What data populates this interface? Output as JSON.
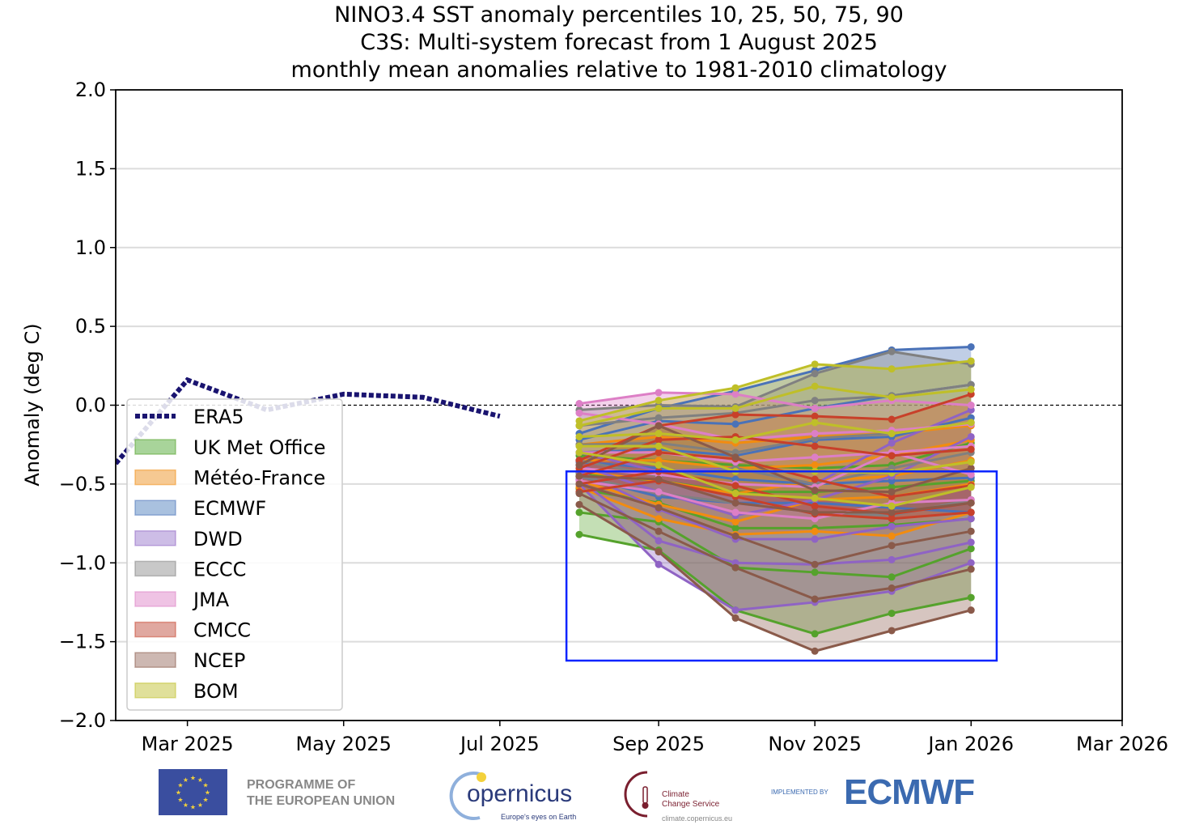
{
  "chart_data": {
    "type": "line",
    "title_lines": [
      "NINO3.4 SST anomaly percentiles 10, 25, 50, 75, 90",
      "C3S: Multi-system forecast from 1 August 2025",
      "monthly mean anomalies relative to 1981-2010 climatology"
    ],
    "ylabel": "Anomaly (deg C)",
    "xlabel": "",
    "ylim": [
      -2.0,
      2.0
    ],
    "xlim": [
      "2025-02-01",
      "2026-03-01"
    ],
    "yticks": [
      "2.0",
      "1.5",
      "1.0",
      "0.5",
      "0.0",
      "−0.5",
      "−1.0",
      "−1.5",
      "−2.0"
    ],
    "ytick_values": [
      2.0,
      1.5,
      1.0,
      0.5,
      0.0,
      -0.5,
      -1.0,
      -1.5,
      -2.0
    ],
    "xticks": [
      "Mar 2025",
      "May 2025",
      "Jul 2025",
      "Sep 2025",
      "Nov 2025",
      "Jan 2026",
      "Mar 2026"
    ],
    "xtick_dates": [
      "2025-03-01",
      "2025-05-01",
      "2025-07-01",
      "2025-09-01",
      "2025-11-01",
      "2026-01-01",
      "2026-03-01"
    ],
    "grid": "horizontal",
    "zero_line": "dashed",
    "legend_position": "center-left",
    "observed": {
      "name": "ERA5",
      "color": "#1a1470",
      "style": "dotted",
      "x": [
        "2025-02-01",
        "2025-03-01",
        "2025-04-01",
        "2025-05-01",
        "2025-06-01",
        "2025-07-01"
      ],
      "y": [
        -0.37,
        0.16,
        -0.03,
        0.07,
        0.05,
        -0.07
      ]
    },
    "forecast_x": [
      "2025-08-01",
      "2025-09-01",
      "2025-10-01",
      "2025-11-01",
      "2025-12-01",
      "2026-01-01"
    ],
    "percentile_levels": [
      10,
      25,
      50,
      75,
      90
    ],
    "series": [
      {
        "name": "UK Met Office",
        "color": "#55a22c",
        "fill": "#a8d49a",
        "p": [
          [
            -0.82,
            -0.92,
            -1.3,
            -1.45,
            -1.32,
            -1.22
          ],
          [
            -0.68,
            -0.74,
            -1.03,
            -1.06,
            -1.09,
            -0.91
          ],
          [
            -0.53,
            -0.62,
            -0.78,
            -0.78,
            -0.76,
            -0.72
          ],
          [
            -0.43,
            -0.48,
            -0.55,
            -0.55,
            -0.52,
            -0.48
          ],
          [
            -0.32,
            -0.35,
            -0.38,
            -0.4,
            -0.38,
            -0.24
          ]
        ]
      },
      {
        "name": "Météo-France",
        "color": "#f28c0f",
        "fill": "#f6c992",
        "p": [
          [
            -0.52,
            -0.72,
            -0.82,
            -0.8,
            -0.83,
            -0.68
          ],
          [
            -0.48,
            -0.63,
            -0.74,
            -0.6,
            -0.58,
            -0.5
          ],
          [
            -0.42,
            -0.48,
            -0.56,
            -0.48,
            -0.45,
            -0.35
          ],
          [
            -0.35,
            -0.35,
            -0.4,
            -0.38,
            -0.32,
            -0.22
          ],
          [
            -0.25,
            -0.2,
            -0.24,
            -0.2,
            -0.18,
            -0.13
          ]
        ]
      },
      {
        "name": "ECMWF",
        "color": "#4a72b8",
        "fill": "#a9c1df",
        "p": [
          [
            -0.45,
            -0.58,
            -0.62,
            -0.62,
            -0.65,
            -0.68
          ],
          [
            -0.36,
            -0.4,
            -0.47,
            -0.5,
            -0.48,
            -0.46
          ],
          [
            -0.3,
            -0.28,
            -0.32,
            -0.22,
            -0.2,
            -0.08
          ],
          [
            -0.22,
            -0.1,
            -0.12,
            -0.02,
            0.06,
            0.13
          ],
          [
            -0.18,
            -0.02,
            0.09,
            0.22,
            0.35,
            0.37
          ]
        ]
      },
      {
        "name": "DWD",
        "color": "#8f63c4",
        "fill": "#cdbde6",
        "p": [
          [
            -0.5,
            -1.01,
            -1.3,
            -1.25,
            -1.18,
            -1.0
          ],
          [
            -0.47,
            -0.86,
            -1.0,
            -1.01,
            -0.98,
            -0.87
          ],
          [
            -0.42,
            -0.66,
            -0.85,
            -0.85,
            -0.77,
            -0.72
          ],
          [
            -0.38,
            -0.55,
            -0.7,
            -0.6,
            -0.45,
            -0.2
          ],
          [
            -0.3,
            -0.42,
            -0.4,
            -0.5,
            -0.24,
            -0.03
          ]
        ]
      },
      {
        "name": "ECCC",
        "color": "#808080",
        "fill": "#c8c8c8",
        "p": [
          [
            -0.45,
            -0.56,
            -0.62,
            -0.68,
            -0.7,
            -0.6
          ],
          [
            -0.35,
            -0.45,
            -0.4,
            -0.5,
            -0.4,
            -0.3
          ],
          [
            -0.25,
            -0.24,
            -0.3,
            -0.21,
            -0.18,
            -0.11
          ],
          [
            -0.13,
            -0.08,
            -0.05,
            0.03,
            0.06,
            0.13
          ],
          [
            -0.03,
            0.0,
            -0.01,
            0.2,
            0.34,
            0.26
          ]
        ]
      },
      {
        "name": "JMA",
        "color": "#dd7fc6",
        "fill": "#efc3e4",
        "p": [
          [
            -0.48,
            -0.55,
            -0.68,
            -0.72,
            -0.62,
            -0.6
          ],
          [
            -0.4,
            -0.44,
            -0.5,
            -0.52,
            -0.3,
            -0.44
          ],
          [
            -0.3,
            -0.3,
            -0.36,
            -0.33,
            -0.3,
            -0.26
          ],
          [
            -0.05,
            -0.12,
            -0.22,
            -0.18,
            -0.16,
            -0.12
          ],
          [
            0.01,
            0.08,
            0.07,
            -0.02,
            0.03,
            0.0
          ]
        ]
      },
      {
        "name": "CMCC",
        "color": "#c8402a",
        "fill": "#e0a8a0",
        "p": [
          [
            -0.55,
            -0.48,
            -0.58,
            -0.69,
            -0.72,
            -0.68
          ],
          [
            -0.5,
            -0.42,
            -0.51,
            -0.64,
            -0.69,
            -0.62
          ],
          [
            -0.45,
            -0.3,
            -0.34,
            -0.47,
            -0.58,
            -0.51
          ],
          [
            -0.4,
            -0.22,
            -0.2,
            -0.26,
            -0.32,
            -0.28
          ],
          [
            -0.35,
            -0.13,
            -0.06,
            -0.07,
            -0.09,
            0.07
          ]
        ]
      },
      {
        "name": "NCEP",
        "color": "#8a5a4a",
        "fill": "#cdb8b2",
        "p": [
          [
            -0.63,
            -0.93,
            -1.35,
            -1.56,
            -1.43,
            -1.3
          ],
          [
            -0.56,
            -0.8,
            -1.03,
            -1.23,
            -1.16,
            -1.04
          ],
          [
            -0.5,
            -0.65,
            -0.83,
            -1.01,
            -0.89,
            -0.8
          ],
          [
            -0.45,
            -0.47,
            -0.62,
            -0.68,
            -0.68,
            -0.62
          ],
          [
            -0.38,
            -0.13,
            -0.33,
            -0.54,
            -0.55,
            -0.4
          ]
        ]
      },
      {
        "name": "BOM",
        "color": "#bfbf28",
        "fill": "#e0e09a",
        "p": [
          [
            -0.3,
            -0.38,
            -0.56,
            -0.59,
            -0.64,
            -0.52
          ],
          [
            -0.26,
            -0.26,
            -0.42,
            -0.42,
            -0.43,
            -0.36
          ],
          [
            -0.2,
            -0.18,
            -0.22,
            -0.11,
            -0.18,
            -0.11
          ],
          [
            -0.13,
            -0.02,
            -0.02,
            0.12,
            0.05,
            0.1
          ],
          [
            -0.1,
            0.03,
            0.11,
            0.26,
            0.23,
            0.28
          ]
        ]
      }
    ],
    "highlight_box": {
      "color": "#0a24ff",
      "x": [
        "2025-07-27",
        "2026-01-11"
      ],
      "y": [
        -1.62,
        -0.42
      ]
    }
  },
  "footer": {
    "eu_text_1": "PROGRAMME OF",
    "eu_text_2": "THE EUROPEAN UNION",
    "copernicus": "opernicus",
    "copernicus_tagline": "Europe's eyes on Earth",
    "c3s_name_1": "Climate",
    "c3s_name_2": "Change Service",
    "c3s_url": "climate.copernicus.eu",
    "implemented_by": "IMPLEMENTED BY",
    "ecmwf": "ECMWF"
  }
}
